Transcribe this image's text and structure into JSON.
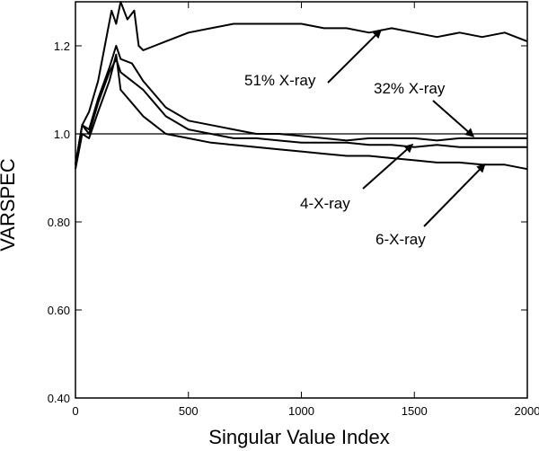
{
  "chart_data": {
    "type": "line",
    "title": "",
    "xlabel": "Singular Value Index",
    "ylabel": "VARSPEC",
    "xlim": [
      0,
      2000
    ],
    "ylim": [
      0.4,
      1.3
    ],
    "x_ticks": [
      "0",
      "500",
      "1000",
      "1500",
      "2000"
    ],
    "y_ticks": [
      "0.40",
      "0.60",
      "0.80",
      "1.0",
      "1.2"
    ],
    "x_tick_values": [
      0,
      500,
      1000,
      1500,
      2000
    ],
    "y_tick_values": [
      0.4,
      0.6,
      0.8,
      1.0,
      1.2
    ],
    "grid": false,
    "legend": "none",
    "reference_line": {
      "y": 1.0
    },
    "series": [
      {
        "name": "51% X-ray",
        "x": [
          0,
          30,
          60,
          100,
          130,
          160,
          180,
          200,
          230,
          260,
          280,
          300,
          350,
          400,
          500,
          600,
          700,
          800,
          900,
          1000,
          1100,
          1200,
          1300,
          1400,
          1500,
          1600,
          1700,
          1800,
          1900,
          2000
        ],
        "y": [
          0.93,
          1.02,
          1.05,
          1.12,
          1.2,
          1.28,
          1.25,
          1.3,
          1.26,
          1.28,
          1.2,
          1.19,
          1.2,
          1.21,
          1.23,
          1.24,
          1.25,
          1.25,
          1.25,
          1.25,
          1.24,
          1.24,
          1.23,
          1.24,
          1.23,
          1.22,
          1.23,
          1.22,
          1.23,
          1.21
        ]
      },
      {
        "name": "32% X-ray",
        "x": [
          0,
          30,
          60,
          100,
          150,
          180,
          200,
          250,
          300,
          350,
          400,
          500,
          600,
          700,
          800,
          900,
          1000,
          1100,
          1200,
          1300,
          1400,
          1500,
          1600,
          1700,
          1800,
          1900,
          2000
        ],
        "y": [
          0.93,
          1.02,
          1.01,
          1.08,
          1.15,
          1.2,
          1.17,
          1.16,
          1.12,
          1.09,
          1.06,
          1.03,
          1.02,
          1.01,
          1.0,
          1.0,
          0.995,
          0.99,
          0.985,
          0.99,
          0.99,
          0.99,
          0.985,
          0.99,
          0.99,
          0.99,
          0.99
        ]
      },
      {
        "name": "4-X-ray",
        "x": [
          0,
          30,
          60,
          100,
          150,
          180,
          200,
          250,
          300,
          350,
          400,
          500,
          600,
          700,
          800,
          900,
          1000,
          1100,
          1200,
          1300,
          1400,
          1500,
          1600,
          1700,
          1800,
          1900,
          2000
        ],
        "y": [
          0.93,
          1.02,
          1.0,
          1.07,
          1.14,
          1.17,
          1.14,
          1.12,
          1.1,
          1.07,
          1.04,
          1.01,
          1.0,
          0.99,
          0.99,
          0.985,
          0.98,
          0.98,
          0.98,
          0.975,
          0.975,
          0.97,
          0.975,
          0.97,
          0.97,
          0.97,
          0.97
        ]
      },
      {
        "name": "6-X-ray",
        "x": [
          0,
          30,
          60,
          100,
          150,
          180,
          200,
          250,
          300,
          350,
          400,
          500,
          600,
          700,
          800,
          900,
          1000,
          1100,
          1200,
          1300,
          1400,
          1500,
          1600,
          1700,
          1800,
          1900,
          2000
        ],
        "y": [
          0.92,
          1.0,
          0.99,
          1.05,
          1.12,
          1.18,
          1.1,
          1.07,
          1.04,
          1.02,
          1.0,
          0.99,
          0.98,
          0.975,
          0.97,
          0.965,
          0.96,
          0.955,
          0.95,
          0.95,
          0.945,
          0.94,
          0.935,
          0.935,
          0.93,
          0.93,
          0.92
        ]
      }
    ],
    "annotations": [
      {
        "text": "51% X-ray",
        "target_x": 1350,
        "target_y": 1.235
      },
      {
        "text": "32% X-ray",
        "target_x": 1760,
        "target_y": 0.995
      },
      {
        "text": "4-X-ray",
        "target_x": 1490,
        "target_y": 0.975
      },
      {
        "text": "6-X-ray",
        "target_x": 1810,
        "target_y": 0.93
      }
    ]
  }
}
